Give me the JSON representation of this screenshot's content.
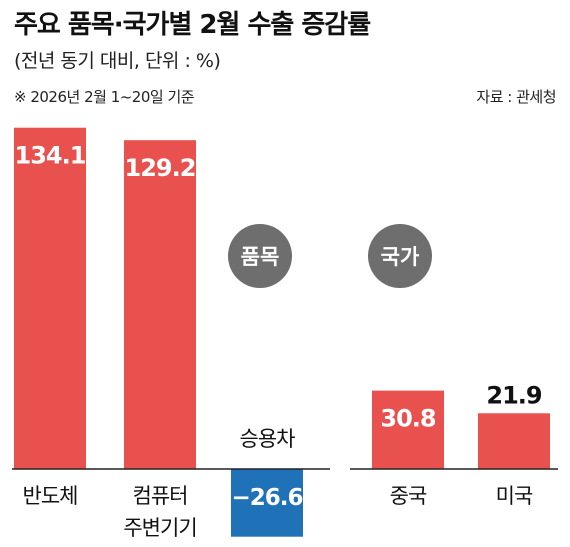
{
  "header": {
    "title": "주요 품목·국가별 2월 수출 증감률",
    "subtitle": "(전년 동기 대비, 단위 : %)",
    "note": "※ 2026년 2월 1~20일 기준",
    "source": "자료 : 관세청"
  },
  "colors": {
    "positive": "#e9514e",
    "negative": "#1f72b8",
    "badge": "#6e6e6e",
    "axis": "#222222"
  },
  "chart_data": [
    {
      "type": "bar",
      "group_label": "품목",
      "categories": [
        "반도체",
        "컴퓨터 주변기기",
        "승용차"
      ],
      "category_lines": [
        [
          "반도체"
        ],
        [
          "컴퓨터",
          "주변기기"
        ],
        [
          "승용차"
        ]
      ],
      "values": [
        134.1,
        129.2,
        -26.6
      ],
      "value_labels": [
        "134.1",
        "129.2",
        "−26.6"
      ]
    },
    {
      "type": "bar",
      "group_label": "국가",
      "categories": [
        "중국",
        "미국"
      ],
      "category_lines": [
        [
          "중국"
        ],
        [
          "미국"
        ]
      ],
      "values": [
        30.8,
        21.9
      ],
      "value_labels": [
        "30.8",
        "21.9"
      ]
    }
  ]
}
